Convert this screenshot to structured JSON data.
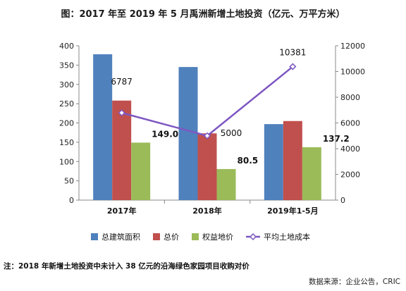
{
  "chart_data": {
    "type": "bar",
    "title": "图：2017 年至 2019 年 5 月禹洲新增土地投资（亿元、万平方米）",
    "categories": [
      "2017年",
      "2018年",
      "2019年1-5月"
    ],
    "series": [
      {
        "name": "总建筑面积",
        "type": "bar",
        "axis": "left",
        "color": "#4F81BD",
        "values": [
          378,
          345,
          197
        ]
      },
      {
        "name": "总价",
        "type": "bar",
        "axis": "left",
        "color": "#C0504D",
        "values": [
          258,
          173,
          205
        ]
      },
      {
        "name": "权益地价",
        "type": "bar",
        "axis": "left",
        "color": "#9BBB59",
        "values": [
          149.0,
          80.5,
          137.2
        ],
        "labels": [
          "149.0",
          "80.5",
          "137.2"
        ]
      },
      {
        "name": "平均土地成本",
        "type": "line",
        "axis": "right",
        "color": "#7E57C2",
        "values": [
          6787,
          5000,
          10381
        ],
        "labels": [
          "6787",
          "5000",
          "10381"
        ]
      }
    ],
    "ylim": [
      0,
      400
    ],
    "yticks": [
      "0",
      "50",
      "100",
      "150",
      "200",
      "250",
      "300",
      "350",
      "400"
    ],
    "y2lim": [
      0,
      12000
    ],
    "y2ticks": [
      "0",
      "2000",
      "4000",
      "6000",
      "8000",
      "10000",
      "12000"
    ],
    "grid": false,
    "legend_position": "bottom"
  },
  "footnote": "注：2018 年新增土地投资中未计入 38 亿元的沿海绿色家园项目收购对价",
  "source": "数据来源：企业公告，CRIC"
}
